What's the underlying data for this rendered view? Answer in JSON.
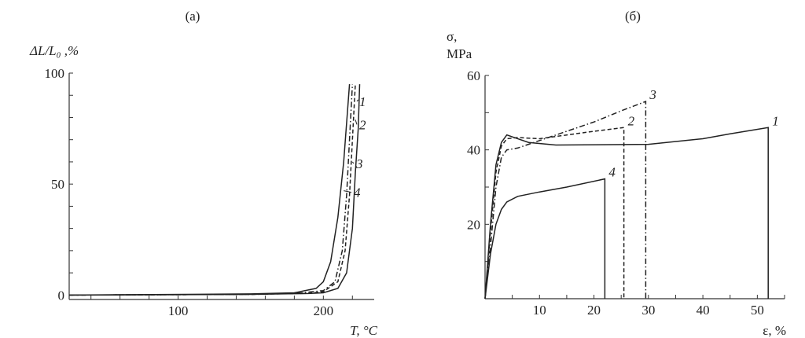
{
  "chart_data": [
    {
      "type": "line",
      "title": "(a)",
      "ylabel": "ΔL/L₀ ,%",
      "xlabel": "T, °C",
      "xlim": [
        25,
        235
      ],
      "ylim": [
        -2,
        100
      ],
      "xticks": [
        100,
        200
      ],
      "yticks": [
        0,
        50,
        100
      ],
      "grid": false,
      "series": [
        {
          "name": "1",
          "style": "solid",
          "x": [
            25,
            150,
            190,
            200,
            210,
            216,
            220,
            222,
            224,
            225
          ],
          "y": [
            0,
            0.3,
            0.7,
            1,
            3,
            10,
            30,
            55,
            75,
            95
          ]
        },
        {
          "name": "2",
          "style": "dashed",
          "x": [
            25,
            150,
            190,
            200,
            210,
            215,
            218,
            220,
            222
          ],
          "y": [
            0,
            0.3,
            0.8,
            1.5,
            6,
            20,
            45,
            70,
            95
          ]
        },
        {
          "name": "3",
          "style": "dashdot",
          "x": [
            25,
            150,
            185,
            200,
            208,
            213,
            216,
            218,
            220
          ],
          "y": [
            0,
            0.3,
            1,
            2,
            6,
            20,
            45,
            70,
            95
          ]
        },
        {
          "name": "4",
          "style": "solid",
          "x": [
            25,
            150,
            180,
            195,
            200,
            205,
            210,
            214,
            218
          ],
          "y": [
            0,
            0.5,
            1,
            3,
            6,
            15,
            35,
            60,
            95
          ]
        }
      ]
    },
    {
      "type": "line",
      "title": "(б)",
      "ylabel": "σ,",
      "ylabel_unit": "MPa",
      "xlabel": "ε, %",
      "xlim": [
        0,
        55
      ],
      "ylim": [
        0,
        60
      ],
      "xticks": [
        10,
        20,
        30,
        40,
        50
      ],
      "yticks": [
        20,
        40,
        60
      ],
      "grid": false,
      "series": [
        {
          "name": "1",
          "style": "solid",
          "x": [
            0,
            1,
            2,
            3,
            4,
            5,
            8,
            13,
            30,
            40,
            45,
            52,
            52
          ],
          "y": [
            0,
            20,
            36,
            42,
            44,
            43.5,
            42,
            41.3,
            41.5,
            43,
            44.3,
            46,
            0
          ]
        },
        {
          "name": "2",
          "style": "dashed",
          "x": [
            0,
            1,
            2,
            3,
            4,
            6,
            10,
            15,
            20,
            25.5,
            25.5
          ],
          "y": [
            0,
            18,
            34,
            41,
            43,
            43.3,
            43,
            44,
            45,
            46,
            0
          ]
        },
        {
          "name": "3",
          "style": "dashdot",
          "x": [
            0,
            1,
            2,
            3,
            4,
            6,
            10,
            15,
            20,
            25,
            29.5,
            29.5
          ],
          "y": [
            0,
            14,
            30,
            38,
            40,
            40.5,
            42.5,
            45,
            47.5,
            50.5,
            53,
            0
          ]
        },
        {
          "name": "4",
          "style": "solid",
          "x": [
            0,
            1,
            2,
            3,
            4,
            6,
            10,
            15,
            22,
            22
          ],
          "y": [
            0,
            12,
            20,
            24,
            26,
            27.5,
            28.7,
            30,
            32.2,
            0
          ]
        }
      ]
    }
  ]
}
